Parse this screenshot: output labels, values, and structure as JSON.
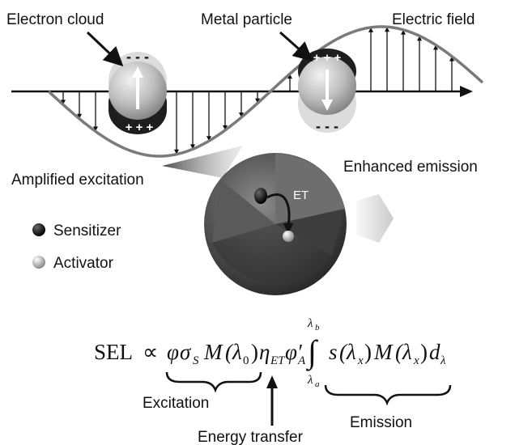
{
  "labels": {
    "electron_cloud": "Electron cloud",
    "metal_particle": "Metal particle",
    "electric_field": "Electric field",
    "amplified_excitation": "Amplified excitation",
    "enhanced_emission": "Enhanced emission",
    "et": "ET",
    "sensitizer": "Sensitizer",
    "activator": "Activator",
    "excitation": "Excitation",
    "energy_transfer": "Energy transfer",
    "emission": "Emission"
  },
  "charges": {
    "minus": "- - -",
    "plus": "+ + +"
  },
  "equation": {
    "lhs": "SEL",
    "prop": "∝",
    "phi": "φ",
    "sigma": "σ",
    "sigma_sub": "S",
    "M": "M",
    "lambda0": "(λ",
    "zero": "0",
    "close": ")",
    "eta": "η",
    "eta_sub": "ET",
    "varphi": "φ′",
    "varphi_sub": "A",
    "integral": "∫",
    "upper": "λ",
    "upper_sub": "b",
    "lower": "λ",
    "lower_sub": "a",
    "s": "s",
    "lx_open": "(λ",
    "x": "x",
    "M2": "M",
    "lx2_open": "(λ",
    "x2": "x",
    "d": "d",
    "d_sub": "λ"
  },
  "colors": {
    "wave": "#7a7a7a",
    "axis": "#111111",
    "sphere_light": "#d8d8d8",
    "sphere_dark": "#2a2a2a",
    "glow": "#c0c0c0"
  }
}
